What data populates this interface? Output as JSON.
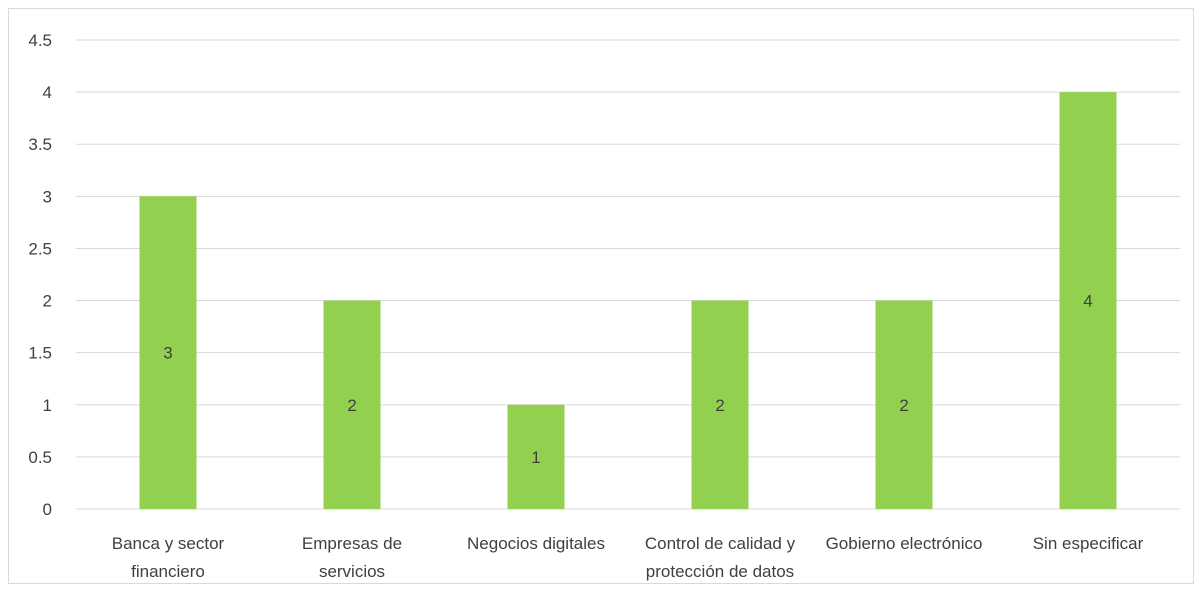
{
  "chart_data": {
    "type": "bar",
    "categories": [
      [
        "Banca y sector",
        "financiero"
      ],
      [
        "Empresas de",
        "servicios"
      ],
      [
        "Negocios digitales"
      ],
      [
        "Control de calidad y",
        "protección de datos"
      ],
      [
        "Gobierno electrónico"
      ],
      [
        "Sin especificar"
      ]
    ],
    "values": [
      3,
      2,
      1,
      2,
      2,
      4
    ],
    "data_labels": [
      "3",
      "2",
      "1",
      "2",
      "2",
      "4"
    ],
    "yticks": [
      "0",
      "0.5",
      "1",
      "1.5",
      "2",
      "2.5",
      "3",
      "3.5",
      "4",
      "4.5"
    ],
    "ylim": [
      0,
      4.5
    ],
    "title": "",
    "xlabel": "",
    "ylabel": "",
    "grid": true,
    "bar_color": "#92d050",
    "grid_color": "#d9d9d9",
    "text_color": "#404040"
  }
}
